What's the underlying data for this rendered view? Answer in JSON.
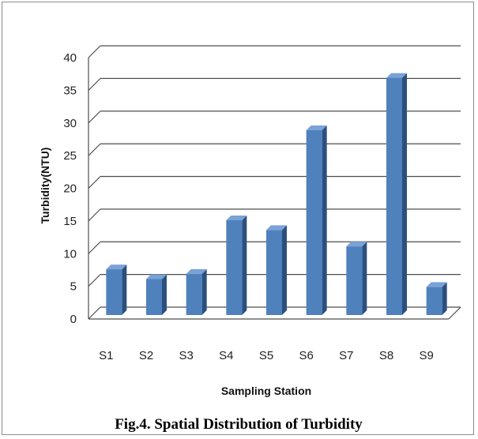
{
  "chart_data": {
    "type": "bar",
    "title": "",
    "caption": "Fig.4. Spatial Distribution of Turbidity",
    "xlabel": "Sampling Station",
    "ylabel": "Turbidity(NTU)",
    "categories": [
      "S1",
      "S2",
      "S3",
      "S4",
      "S5",
      "S6",
      "S7",
      "S8",
      "S9"
    ],
    "values": [
      7,
      5.5,
      6.3,
      14.5,
      13,
      28.3,
      10.5,
      36.3,
      4.3
    ],
    "ylim": [
      0,
      40
    ],
    "yticks": [
      0,
      5,
      10,
      15,
      20,
      25,
      30,
      35,
      40
    ],
    "grid": true,
    "legend": "none",
    "colors": {
      "bar_front": "#4f81bd",
      "bar_side": "#2b4f7e",
      "bar_top": "#7aa2d6",
      "grid": "#4d4d4d"
    }
  }
}
